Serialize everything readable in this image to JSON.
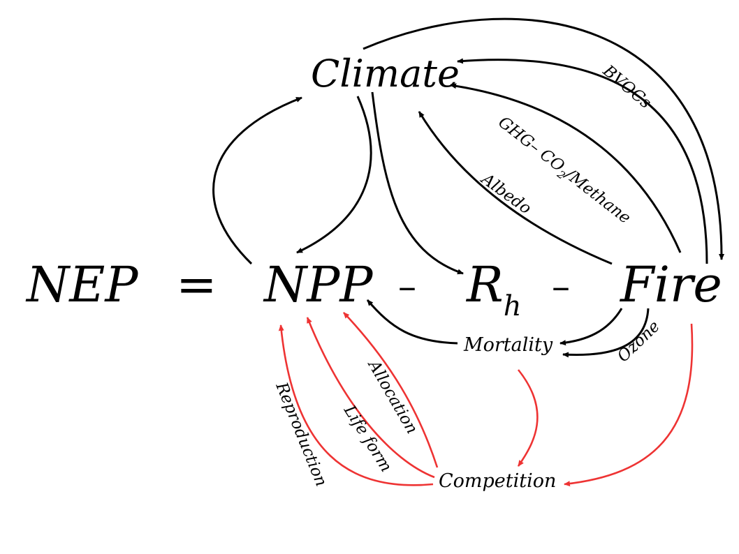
{
  "equation": {
    "lhs": "NEP",
    "equals": "=",
    "npp": "NPP",
    "minus1": "–",
    "rh_base": "R",
    "rh_sub": "h",
    "minus2": "–",
    "fire": "Fire"
  },
  "nodes": {
    "climate": "Climate",
    "mortality": "Mortality",
    "competition": "Competition"
  },
  "edge_labels": {
    "bvocs": "BVOCs",
    "ghg_prefix": "GHG– CO",
    "ghg_sub": "2",
    "ghg_suffix": "/Methane",
    "albedo": "Albedo",
    "ozone": "Ozone",
    "allocation": "Allocation",
    "life_form": "Life form",
    "reproduction": "Reproduction"
  },
  "colors": {
    "black_edges": "#000000",
    "red_edges": "#ee3333",
    "background": "#ffffff"
  }
}
